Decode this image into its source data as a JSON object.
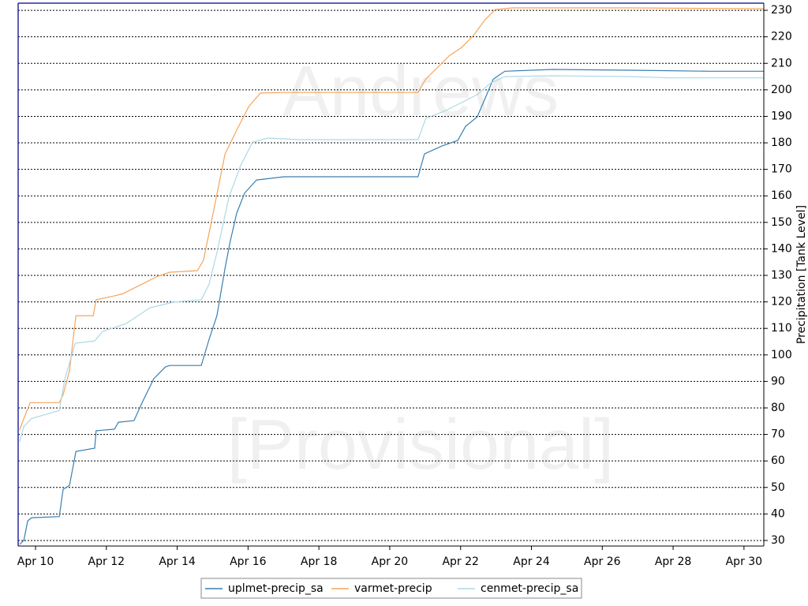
{
  "chart_data": {
    "type": "line",
    "watermarks": [
      "Andrews",
      "[Provisional]"
    ],
    "y_label": "Precipitation  [Tank Level]",
    "xlim": [
      9.51,
      30.56
    ],
    "ylim": [
      27.9,
      232.7
    ],
    "xticks": [
      {
        "value": 10,
        "label": "Apr 10"
      },
      {
        "value": 12,
        "label": "Apr 12"
      },
      {
        "value": 14,
        "label": "Apr 14"
      },
      {
        "value": 16,
        "label": "Apr 16"
      },
      {
        "value": 18,
        "label": "Apr 18"
      },
      {
        "value": 20,
        "label": "Apr 20"
      },
      {
        "value": 22,
        "label": "Apr 22"
      },
      {
        "value": 24,
        "label": "Apr 24"
      },
      {
        "value": 26,
        "label": "Apr 26"
      },
      {
        "value": 28,
        "label": "Apr 28"
      },
      {
        "value": 30,
        "label": "Apr 30"
      }
    ],
    "yticks": [
      30,
      40,
      50,
      60,
      70,
      80,
      90,
      100,
      110,
      120,
      130,
      140,
      150,
      160,
      170,
      180,
      190,
      200,
      210,
      220,
      230
    ],
    "grid": true,
    "legend": "bottom",
    "series": [
      {
        "name": "uplmet-precip_sa",
        "color": "#3a7fb0",
        "x": [
          9.55,
          9.67,
          9.78,
          9.89,
          10.67,
          10.78,
          10.96,
          11.14,
          11.67,
          11.71,
          12.23,
          12.34,
          12.78,
          13.01,
          13.34,
          13.67,
          13.79,
          14.68,
          14.9,
          15.12,
          15.35,
          15.5,
          15.68,
          15.9,
          16.24,
          17.02,
          19.02,
          20.8,
          20.98,
          21.47,
          21.92,
          22.14,
          22.47,
          22.69,
          22.92,
          23.25,
          24.59,
          26.82,
          29.04,
          30.56
        ],
        "values": [
          28.5,
          30,
          37.4,
          38.6,
          39,
          49.3,
          50.8,
          63.6,
          64.8,
          71.4,
          72,
          74.6,
          75.2,
          82,
          91,
          95.5,
          96,
          96,
          105.9,
          114.8,
          132.7,
          143,
          153.5,
          161,
          166,
          167.2,
          167.2,
          167.2,
          175.8,
          178.8,
          180.9,
          186.2,
          189.8,
          196.7,
          204,
          207,
          207.7,
          207.4,
          207,
          207
        ]
      },
      {
        "name": "varmet-precip",
        "color": "#f5a55a",
        "x": [
          9.55,
          9.67,
          9.85,
          10.67,
          10.78,
          10.96,
          11.14,
          11.63,
          11.71,
          12.23,
          12.45,
          13.01,
          13.45,
          13.79,
          14.57,
          14.74,
          14.97,
          15.35,
          15.68,
          16.02,
          16.35,
          17.02,
          19.02,
          20.8,
          21.02,
          21.36,
          21.69,
          22.03,
          22.36,
          22.69,
          22.98,
          23.47,
          26.82,
          30.56
        ],
        "values": [
          71.7,
          76,
          82,
          82,
          85,
          94,
          114.8,
          114.8,
          120.8,
          122.3,
          123,
          126.7,
          129.7,
          131.2,
          131.8,
          135.7,
          150.5,
          175.8,
          184.8,
          193.7,
          198.8,
          199,
          199,
          199,
          204.1,
          208.6,
          213,
          216,
          220.5,
          226.4,
          230.3,
          230.9,
          230.9,
          230.6
        ]
      },
      {
        "name": "cenmet-precip_sa",
        "color": "#add8e6",
        "x": [
          9.55,
          9.67,
          9.89,
          10.67,
          10.83,
          11.12,
          11.67,
          11.9,
          12.56,
          13.23,
          13.9,
          14.68,
          14.9,
          15.12,
          15.46,
          15.79,
          16.13,
          16.57,
          17.46,
          18.35,
          20.8,
          21.02,
          21.58,
          22.03,
          22.47,
          22.85,
          23.25,
          24.59,
          26.82,
          27.93,
          30.56
        ],
        "values": [
          67.2,
          73,
          76,
          79,
          91,
          104.4,
          105.3,
          108.9,
          111.8,
          117.8,
          119.9,
          120.8,
          126.7,
          138.6,
          159.5,
          171.4,
          180.3,
          181.8,
          181.2,
          181.2,
          181.2,
          189.2,
          192.2,
          195.2,
          198.2,
          202.6,
          205,
          205.3,
          205,
          204.5,
          204.5
        ]
      }
    ]
  }
}
